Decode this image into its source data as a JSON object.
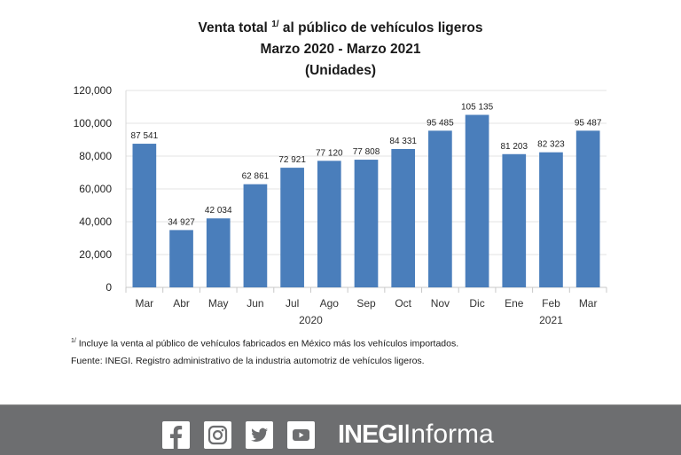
{
  "title": {
    "line1_pre": "Venta total",
    "line1_sup": "1/",
    "line1_post": "al público de vehículos ligeros",
    "line2": "Marzo 2020 - Marzo 2021",
    "line3": "(Unidades)"
  },
  "chart_data": {
    "type": "bar",
    "title": "Venta total 1/ al público de vehículos ligeros Marzo 2020 - Marzo 2021 (Unidades)",
    "xlabel": "",
    "ylabel": "",
    "categories": [
      "Mar",
      "Abr",
      "May",
      "Jun",
      "Jul",
      "Ago",
      "Sep",
      "Oct",
      "Nov",
      "Dic",
      "Ene",
      "Feb",
      "Mar"
    ],
    "values": [
      87541,
      34927,
      42034,
      62861,
      72921,
      77120,
      77808,
      84331,
      95485,
      105135,
      81203,
      82323,
      95487
    ],
    "data_labels": [
      "87 541",
      "34 927",
      "42 034",
      "62 861",
      "72 921",
      "77 120",
      "77 808",
      "84 331",
      "95 485",
      "105 135",
      "81 203",
      "82 323",
      "95 487"
    ],
    "year_groups": [
      {
        "label": "2020",
        "from": 0,
        "to": 9
      },
      {
        "label": "2021",
        "from": 10,
        "to": 12
      }
    ],
    "ylim": [
      0,
      120000
    ],
    "yticks": [
      0,
      20000,
      40000,
      60000,
      80000,
      100000,
      120000
    ],
    "ytick_labels": [
      "0",
      "20,000",
      "40,000",
      "60,000",
      "80,000",
      "100,000",
      "120,000"
    ],
    "grid": true,
    "legend": "none",
    "bar_color": "#4a7ebb"
  },
  "footnotes": {
    "note_sup": "1/",
    "note": "Incluye la venta al público de vehículos fabricados en México más los vehículos importados.",
    "source": "Fuente: INEGI. Registro administrativo de la industria automotriz de vehículos ligeros."
  },
  "banner": {
    "icons": [
      "facebook-icon",
      "instagram-icon",
      "twitter-icon",
      "youtube-icon"
    ],
    "brand_bold": "INEGI",
    "brand_light": "Informa",
    "background": "#6d6e70"
  }
}
